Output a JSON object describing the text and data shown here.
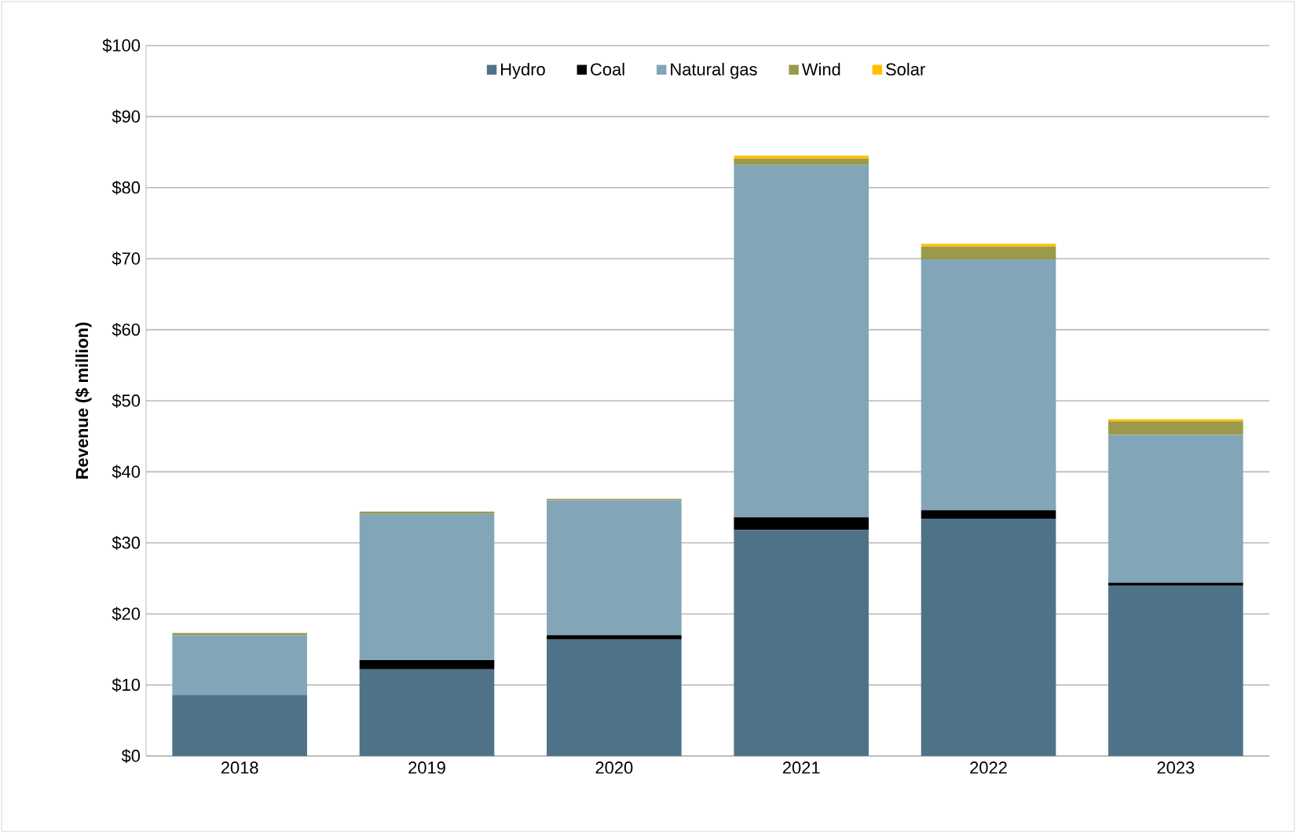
{
  "chart_data": {
    "type": "bar",
    "stacked": true,
    "ylabel": "Revenue ($ million)",
    "categories": [
      "2018",
      "2019",
      "2020",
      "2021",
      "2022",
      "2023"
    ],
    "series": [
      {
        "name": "Hydro",
        "color": "#4e7389",
        "values": [
          8.6,
          12.2,
          16.4,
          31.8,
          33.4,
          24.0
        ]
      },
      {
        "name": "Coal",
        "color": "#000000",
        "values": [
          0,
          1.3,
          0.6,
          1.8,
          1.2,
          0.4
        ]
      },
      {
        "name": "Natural gas",
        "color": "#83a5b8",
        "values": [
          8.4,
          20.6,
          19.0,
          49.6,
          35.3,
          20.8
        ]
      },
      {
        "name": "Wind",
        "color": "#9a9a4a",
        "values": [
          0.3,
          0.3,
          0.2,
          0.9,
          1.8,
          1.9
        ]
      },
      {
        "name": "Solar",
        "color": "#ffc000",
        "values": [
          0,
          0,
          0,
          0.4,
          0.4,
          0.3
        ]
      }
    ],
    "ylim": [
      0,
      100
    ],
    "yticks": [
      {
        "value": 0,
        "label": "$0"
      },
      {
        "value": 10,
        "label": "$10"
      },
      {
        "value": 20,
        "label": "$20"
      },
      {
        "value": 30,
        "label": "$30"
      },
      {
        "value": 40,
        "label": "$40"
      },
      {
        "value": 50,
        "label": "$50"
      },
      {
        "value": 60,
        "label": "$60"
      },
      {
        "value": 70,
        "label": "$70"
      },
      {
        "value": 80,
        "label": "$80"
      },
      {
        "value": 90,
        "label": "$90"
      },
      {
        "value": 100,
        "label": "$100"
      }
    ],
    "grid": "y",
    "legend": "top"
  }
}
